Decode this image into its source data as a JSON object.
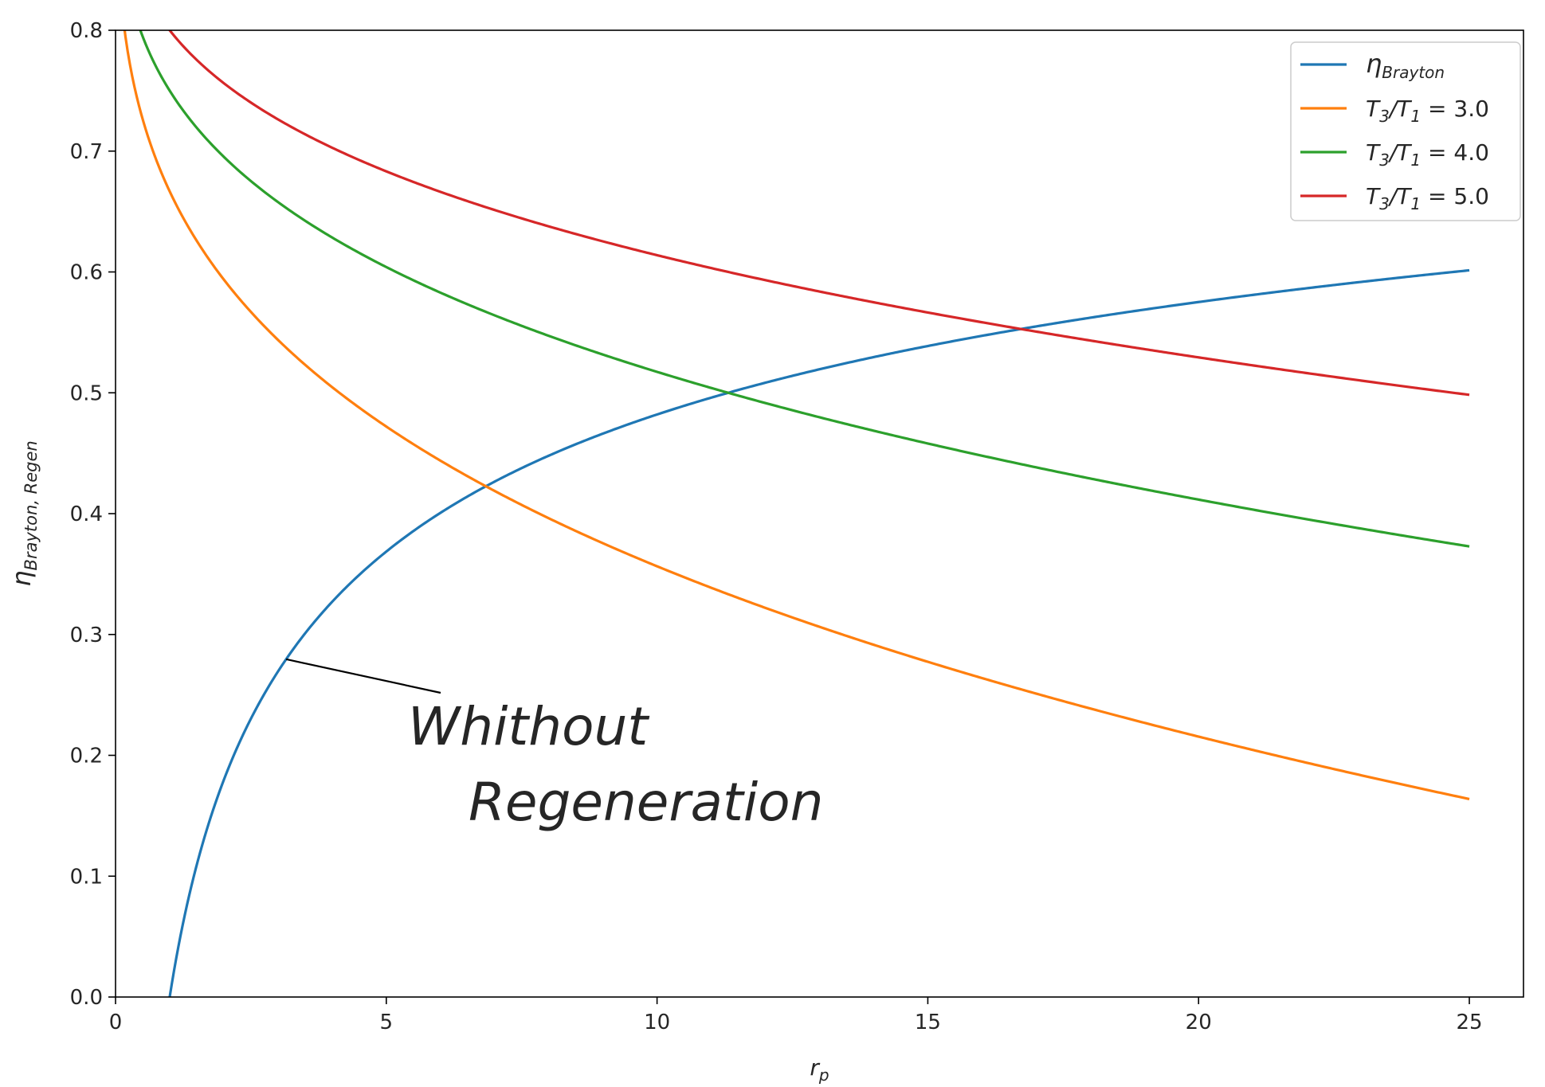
{
  "chart_data": {
    "type": "line",
    "title": "",
    "xlabel": {
      "base": "r",
      "sub": "p"
    },
    "ylabel": {
      "base": "η",
      "sub": "Brayton, Regen"
    },
    "xlim": [
      0,
      26
    ],
    "ylim": [
      0.0,
      0.8
    ],
    "xticks": [
      0,
      5,
      10,
      15,
      20,
      25
    ],
    "yticks": [
      0.0,
      0.1,
      0.2,
      0.3,
      0.4,
      0.5,
      0.6,
      0.7,
      0.8
    ],
    "grid": false,
    "legend": {
      "position": "top-right"
    },
    "gamma": 1.4,
    "series": [
      {
        "key": "brayton",
        "name": "ηBrayton",
        "legend_base": "η",
        "legend_sub": "Brayton",
        "legend_rest": "",
        "color": "#1f77b4",
        "kind": "brayton",
        "x_start": 1.0,
        "x_end": 25
      },
      {
        "key": "t31-3",
        "name": "T3/T1 = 3.0",
        "legend_base": "T",
        "legend_sub": "3",
        "legend_rest": "/T",
        "legend_sub2": "1",
        "legend_tail": " = 3.0",
        "color": "#ff7f0e",
        "kind": "regen",
        "ratio": 3.0,
        "x_start": 0.1,
        "x_end": 25
      },
      {
        "key": "t31-4",
        "name": "T3/T1 = 4.0",
        "legend_base": "T",
        "legend_sub": "3",
        "legend_rest": "/T",
        "legend_sub2": "1",
        "legend_tail": " = 4.0",
        "color": "#2ca02c",
        "kind": "regen",
        "ratio": 4.0,
        "x_start": 0.1,
        "x_end": 25
      },
      {
        "key": "t31-5",
        "name": "T3/T1 = 5.0",
        "legend_base": "T",
        "legend_sub": "3",
        "legend_rest": "/T",
        "legend_sub2": "1",
        "legend_tail": " = 5.0",
        "color": "#d62728",
        "kind": "regen",
        "ratio": 5.0,
        "x_start": 0.1,
        "x_end": 25
      }
    ],
    "annotation": {
      "lines": [
        "Whithout",
        "Regeneration"
      ],
      "points_to_x": 3.15
    }
  }
}
